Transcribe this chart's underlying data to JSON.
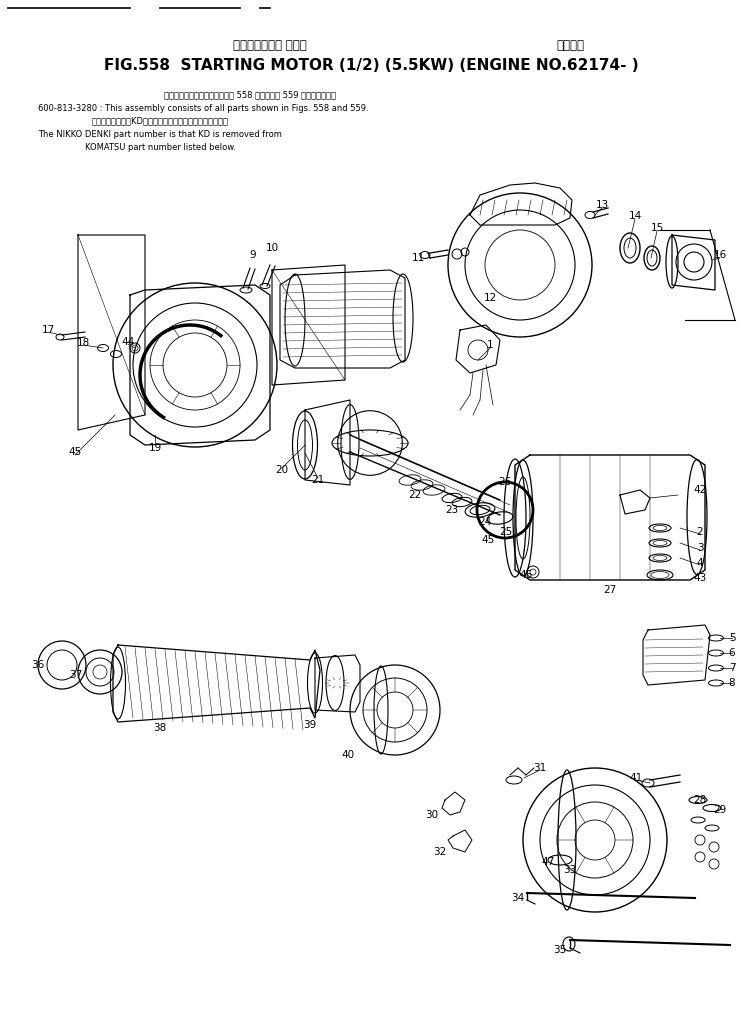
{
  "title_japanese": "スターティング モータ",
  "title_right_japanese": "適用号機",
  "title_main": "FIG.558  STARTING MOTOR (1/2) (5.5KW) (ENGINE NO.62174- )",
  "part_number": "600-813-3280",
  "note_jp1": "このアセンブリの構成部品は第 558 図および第 559 図を含みます。",
  "note_en1": "This assembly consists of all parts shown in Figs. 558 and 559.",
  "note_jp2": "品番のメーカ記号KDを除いたものが日興電機の品番です。",
  "note_en2": "The NIKKO DENKI part number is that KD is removed from",
  "note_en3": "KOMATSU part number listed below.",
  "bg_color": "#ffffff",
  "lc": "#000000"
}
